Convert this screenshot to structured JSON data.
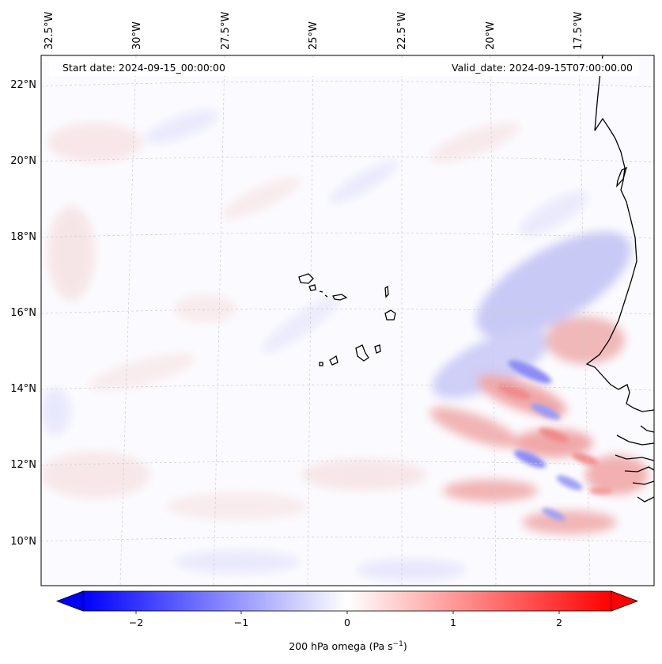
{
  "map": {
    "lon_labels": [
      "32.5°W",
      "30°W",
      "27.5°W",
      "25°W",
      "22.5°W",
      "20°W",
      "17.5°W"
    ],
    "lat_labels": [
      "22°N",
      "20°N",
      "18°N",
      "16°N",
      "14°N",
      "12°N",
      "10°N"
    ],
    "start_date": "Start date: 2024-09-15_00:00:00",
    "valid_date": "Valid_date: 2024-09-15T07:00:00.00"
  },
  "colorbar": {
    "ticks": [
      "−2",
      "−1",
      "0",
      "1",
      "2"
    ],
    "label": "200 hPa omega (Pa s",
    "label_sup": "−1",
    "label_close": ")",
    "range": [
      -2.7,
      2.7
    ],
    "tick_values": [
      -2,
      -1,
      0,
      1,
      2
    ],
    "colormap": "bwr",
    "low_color": "#0000ff",
    "mid_color": "#ffffff",
    "high_color": "#ff0000"
  },
  "colors": {
    "coast": "#000000",
    "grid": "#cccccc",
    "blue_anomaly": "#8c8cf5",
    "red_anomaly": "#f58c8c"
  }
}
